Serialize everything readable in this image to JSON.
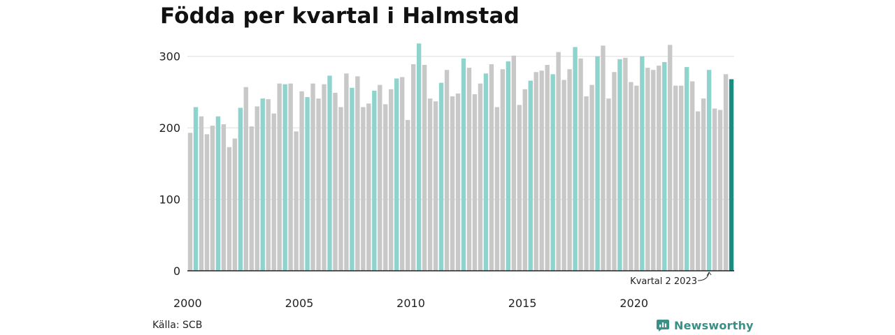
{
  "title": "Födda per kvartal i Halmstad",
  "source": "Källa: SCB",
  "brand": "Newsworthy",
  "colors": {
    "bar_default": "#c8c8c8",
    "bar_q2": "#8fd4cc",
    "bar_latest": "#1a8c80",
    "gridline": "#dddddd",
    "baseline": "#222222",
    "brand": "#3a8f86"
  },
  "chart_data": {
    "type": "bar",
    "title": "Födda per kvartal i Halmstad",
    "xlabel": "",
    "ylabel": "",
    "ylim": [
      0,
      330
    ],
    "yticks": [
      0,
      100,
      200,
      300
    ],
    "xtick_labels": [
      "2000",
      "2005",
      "2010",
      "2015",
      "2020"
    ],
    "grid": true,
    "annotation": {
      "text": "Kvartal 2 2023",
      "target_index": 93
    },
    "highlight": "Kvartal 2 = turkos, senaste kvartalet = mörk turkos",
    "categories": [
      "2000 K1",
      "2000 K2",
      "2000 K3",
      "2000 K4",
      "2001 K1",
      "2001 K2",
      "2001 K3",
      "2001 K4",
      "2002 K1",
      "2002 K2",
      "2002 K3",
      "2002 K4",
      "2003 K1",
      "2003 K2",
      "2003 K3",
      "2003 K4",
      "2004 K1",
      "2004 K2",
      "2004 K3",
      "2004 K4",
      "2005 K1",
      "2005 K2",
      "2005 K3",
      "2005 K4",
      "2006 K1",
      "2006 K2",
      "2006 K3",
      "2006 K4",
      "2007 K1",
      "2007 K2",
      "2007 K3",
      "2007 K4",
      "2008 K1",
      "2008 K2",
      "2008 K3",
      "2008 K4",
      "2009 K1",
      "2009 K2",
      "2009 K3",
      "2009 K4",
      "2010 K1",
      "2010 K2",
      "2010 K3",
      "2010 K4",
      "2011 K1",
      "2011 K2",
      "2011 K3",
      "2011 K4",
      "2012 K1",
      "2012 K2",
      "2012 K3",
      "2012 K4",
      "2013 K1",
      "2013 K2",
      "2013 K3",
      "2013 K4",
      "2014 K1",
      "2014 K2",
      "2014 K3",
      "2014 K4",
      "2015 K1",
      "2015 K2",
      "2015 K3",
      "2015 K4",
      "2016 K1",
      "2016 K2",
      "2016 K3",
      "2016 K4",
      "2017 K1",
      "2017 K2",
      "2017 K3",
      "2017 K4",
      "2018 K1",
      "2018 K2",
      "2018 K3",
      "2018 K4",
      "2019 K1",
      "2019 K2",
      "2019 K3",
      "2019 K4",
      "2020 K1",
      "2020 K2",
      "2020 K3",
      "2020 K4",
      "2021 K1",
      "2021 K2",
      "2021 K3",
      "2021 K4",
      "2022 K1",
      "2022 K2",
      "2022 K3",
      "2022 K4",
      "2023 K1",
      "2023 K2",
      "2023 K3",
      "2023 K4",
      "2024 K1",
      "2024 K2"
    ],
    "values": [
      193,
      229,
      216,
      191,
      203,
      216,
      205,
      173,
      185,
      228,
      257,
      202,
      230,
      241,
      240,
      220,
      262,
      261,
      262,
      195,
      251,
      243,
      262,
      241,
      261,
      273,
      249,
      229,
      276,
      256,
      272,
      229,
      234,
      252,
      260,
      233,
      254,
      269,
      271,
      211,
      289,
      318,
      288,
      241,
      237,
      263,
      281,
      244,
      248,
      297,
      284,
      247,
      262,
      276,
      289,
      229,
      282,
      293,
      301,
      232,
      254,
      266,
      278,
      280,
      288,
      275,
      306,
      267,
      282,
      313,
      297,
      244,
      260,
      300,
      315,
      241,
      278,
      296,
      298,
      264,
      259,
      300,
      284,
      281,
      287,
      292,
      316,
      259,
      259,
      285,
      265,
      223,
      241,
      281,
      227,
      225,
      275,
      268
    ]
  }
}
